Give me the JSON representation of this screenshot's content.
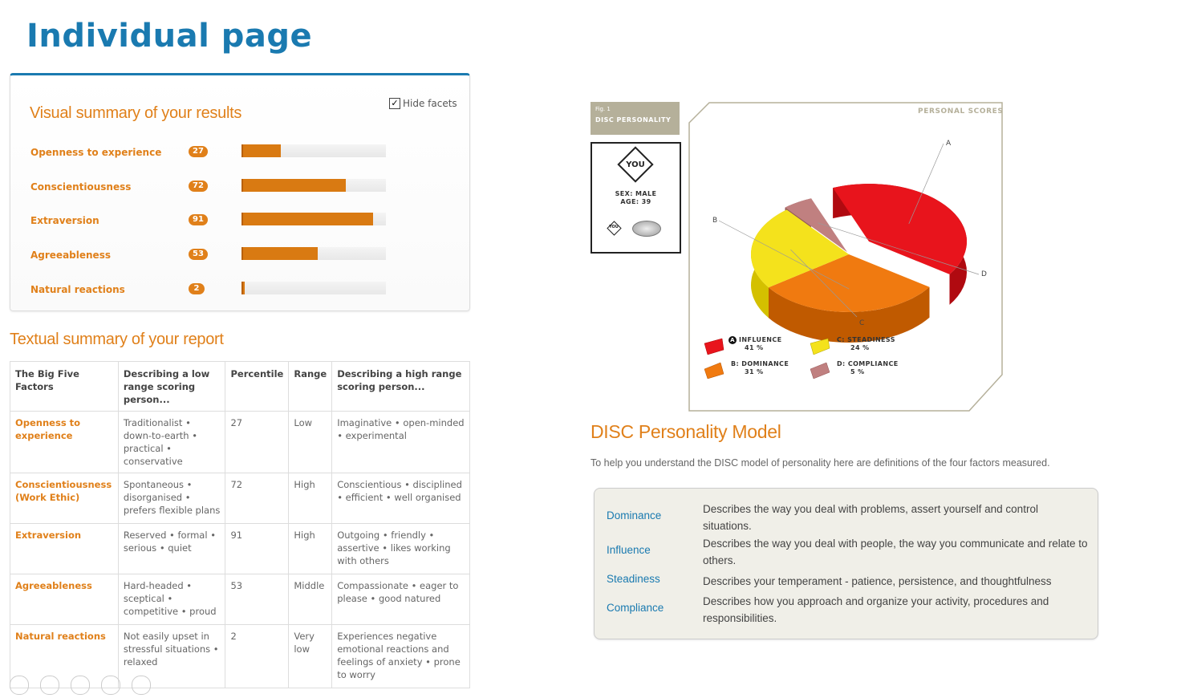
{
  "page_title": "Individual page",
  "visual_summary": {
    "title": "Visual summary of your results",
    "hide_facets_label": "Hide facets",
    "hide_facets_checked": true,
    "factors": [
      {
        "label": "Openness to experience",
        "score": "27",
        "value": 27
      },
      {
        "label": "Conscientiousness",
        "score": "72",
        "value": 72
      },
      {
        "label": "Extraversion",
        "score": "91",
        "value": 91
      },
      {
        "label": "Agreeableness",
        "score": "53",
        "value": 53
      },
      {
        "label": "Natural reactions",
        "score": "2",
        "value": 2
      }
    ]
  },
  "textual_summary": {
    "title": "Textual summary of your report",
    "headers": [
      "The Big Five Factors",
      "Describing a low range scoring person...",
      "Percentile",
      "Range",
      "Describing a high range scoring person..."
    ],
    "rows": [
      {
        "factor": "Openness to experience",
        "low": "Traditionalist • down-to-earth • practical • conservative",
        "percentile": "27",
        "range": "Low",
        "high": "Imaginative • open-minded • experimental"
      },
      {
        "factor": "Conscientiousness (Work Ethic)",
        "low": "Spontaneous • disorganised • prefers flexible plans",
        "percentile": "72",
        "range": "High",
        "high": "Conscientious • disciplined • efficient • well organised"
      },
      {
        "factor": "Extraversion",
        "low": "Reserved • formal • serious • quiet",
        "percentile": "91",
        "range": "High",
        "high": "Outgoing • friendly • assertive • likes working with others"
      },
      {
        "factor": "Agreeableness",
        "low": "Hard-headed • sceptical • competitive • proud",
        "percentile": "53",
        "range": "Middle",
        "high": "Compassionate • eager to please • good natured"
      },
      {
        "factor": "Natural reactions",
        "low": "Not easily upset in stressful situations • relaxed",
        "percentile": "2",
        "range": "Very low",
        "high": "Experiences negative emotional reactions and feelings of anxiety • prone to worry"
      }
    ]
  },
  "disc_figure": {
    "fig_number": "Fig. 1",
    "fig_title": "DISC PERSONALITY",
    "you_label": "YOU",
    "sex_line": "SEX: MALE",
    "age_line": "AGE: 39",
    "personal_scores": "PERSONAL SCORES",
    "colors": {
      "influence": "#e8141c",
      "dominance": "#f07a10",
      "steadiness": "#f4e21c",
      "compliance": "#c08080"
    },
    "chart_data": {
      "type": "pie",
      "title": "",
      "categories": [
        "INFLUENCE",
        "DOMINANCE",
        "STEADINESS",
        "COMPLIANCE"
      ],
      "values": [
        41,
        31,
        24,
        5
      ],
      "point_labels": [
        "A",
        "B",
        "C",
        "D"
      ],
      "legend": [
        {
          "key": "A",
          "name": "INFLUENCE",
          "pct": "41 %"
        },
        {
          "key": "B:",
          "name": "DOMINANCE",
          "pct": "31 %"
        },
        {
          "key": "C:",
          "name": "STEADINESS",
          "pct": "24 %"
        },
        {
          "key": "D:",
          "name": "COMPLIANCE",
          "pct": "5 %"
        }
      ]
    }
  },
  "disc_model": {
    "title": "DISC Personality Model",
    "intro": "To help you understand the DISC model of personality here are definitions of the four factors measured.",
    "definitions": [
      {
        "term": "Dominance",
        "desc": "Describes the way you deal with problems, assert yourself and control situations."
      },
      {
        "term": "Influence",
        "desc": "Describes the way you deal with people, the way you communicate and relate to others."
      },
      {
        "term": "Steadiness",
        "desc": "Describes your temperament - patience, persistence, and thoughtfulness"
      },
      {
        "term": "Compliance",
        "desc": "Describes how you approach and organize your activity, procedures and responsibilities."
      }
    ]
  }
}
